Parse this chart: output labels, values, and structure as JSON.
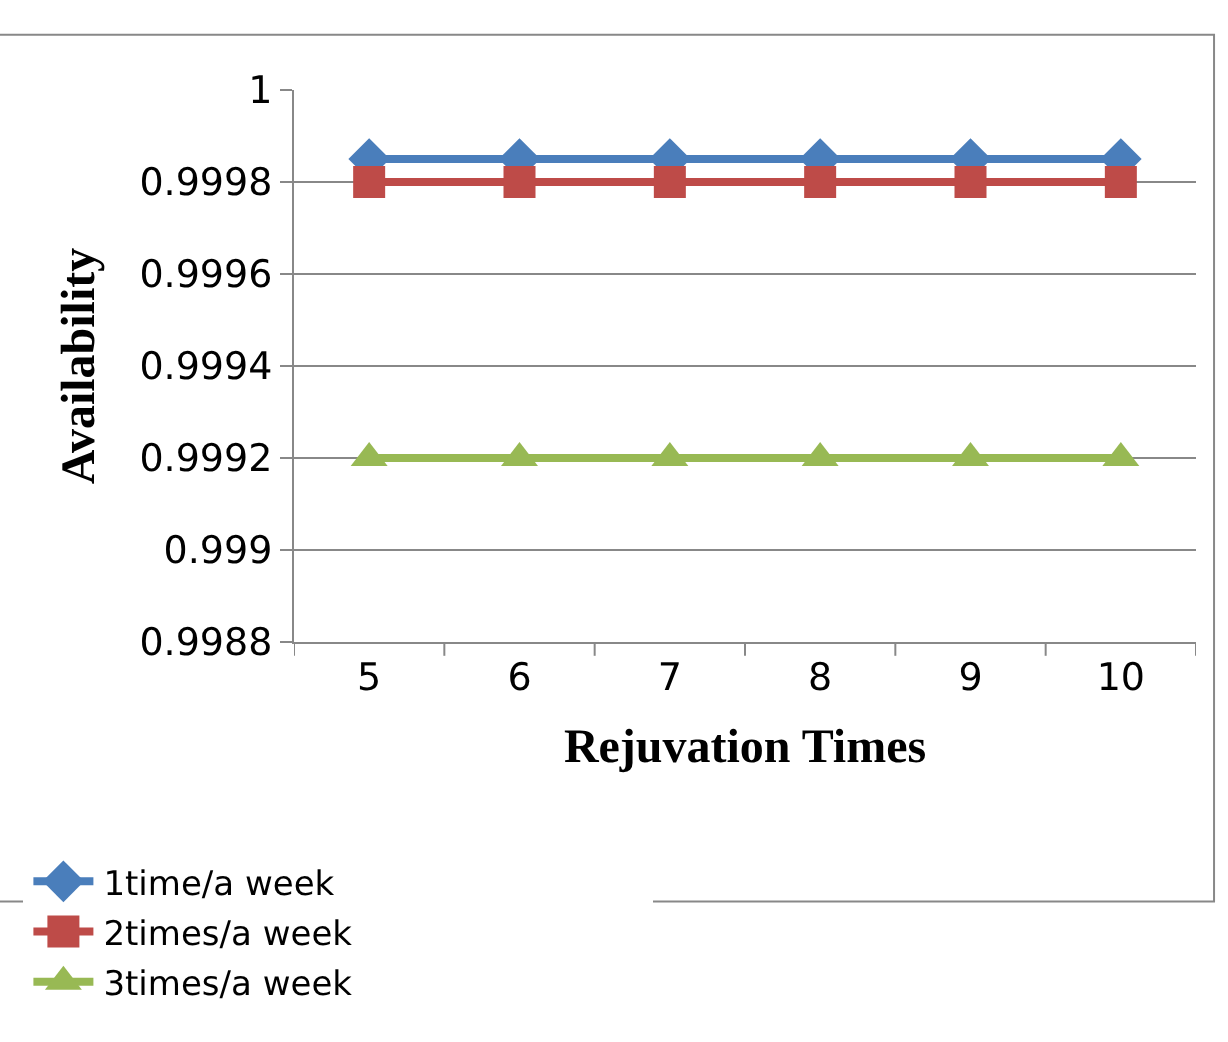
{
  "chart_data": {
    "type": "line",
    "xlabel": "Rejuvation Times",
    "ylabel": "Availability",
    "categories": [
      "5",
      "6",
      "7",
      "8",
      "9",
      "10"
    ],
    "series": [
      {
        "name": "1time/a week",
        "color": "#4a7ebb",
        "marker": "diamond",
        "values": [
          0.99985,
          0.99985,
          0.99985,
          0.99985,
          0.99985,
          0.99985
        ]
      },
      {
        "name": "2times/a week",
        "color": "#be4b48",
        "marker": "square",
        "values": [
          0.9998,
          0.9998,
          0.9998,
          0.9998,
          0.9998,
          0.9998
        ]
      },
      {
        "name": "3times/a week",
        "color": "#98b954",
        "marker": "triangle",
        "values": [
          0.9992,
          0.9992,
          0.9992,
          0.9992,
          0.9992,
          0.9992
        ]
      }
    ],
    "ylim": [
      0.9988,
      1
    ],
    "yticks": [
      0.9988,
      0.999,
      0.9992,
      0.9994,
      0.9996,
      0.9998,
      1
    ],
    "grid": "y",
    "legend": "bottom",
    "line_style": "solid"
  }
}
